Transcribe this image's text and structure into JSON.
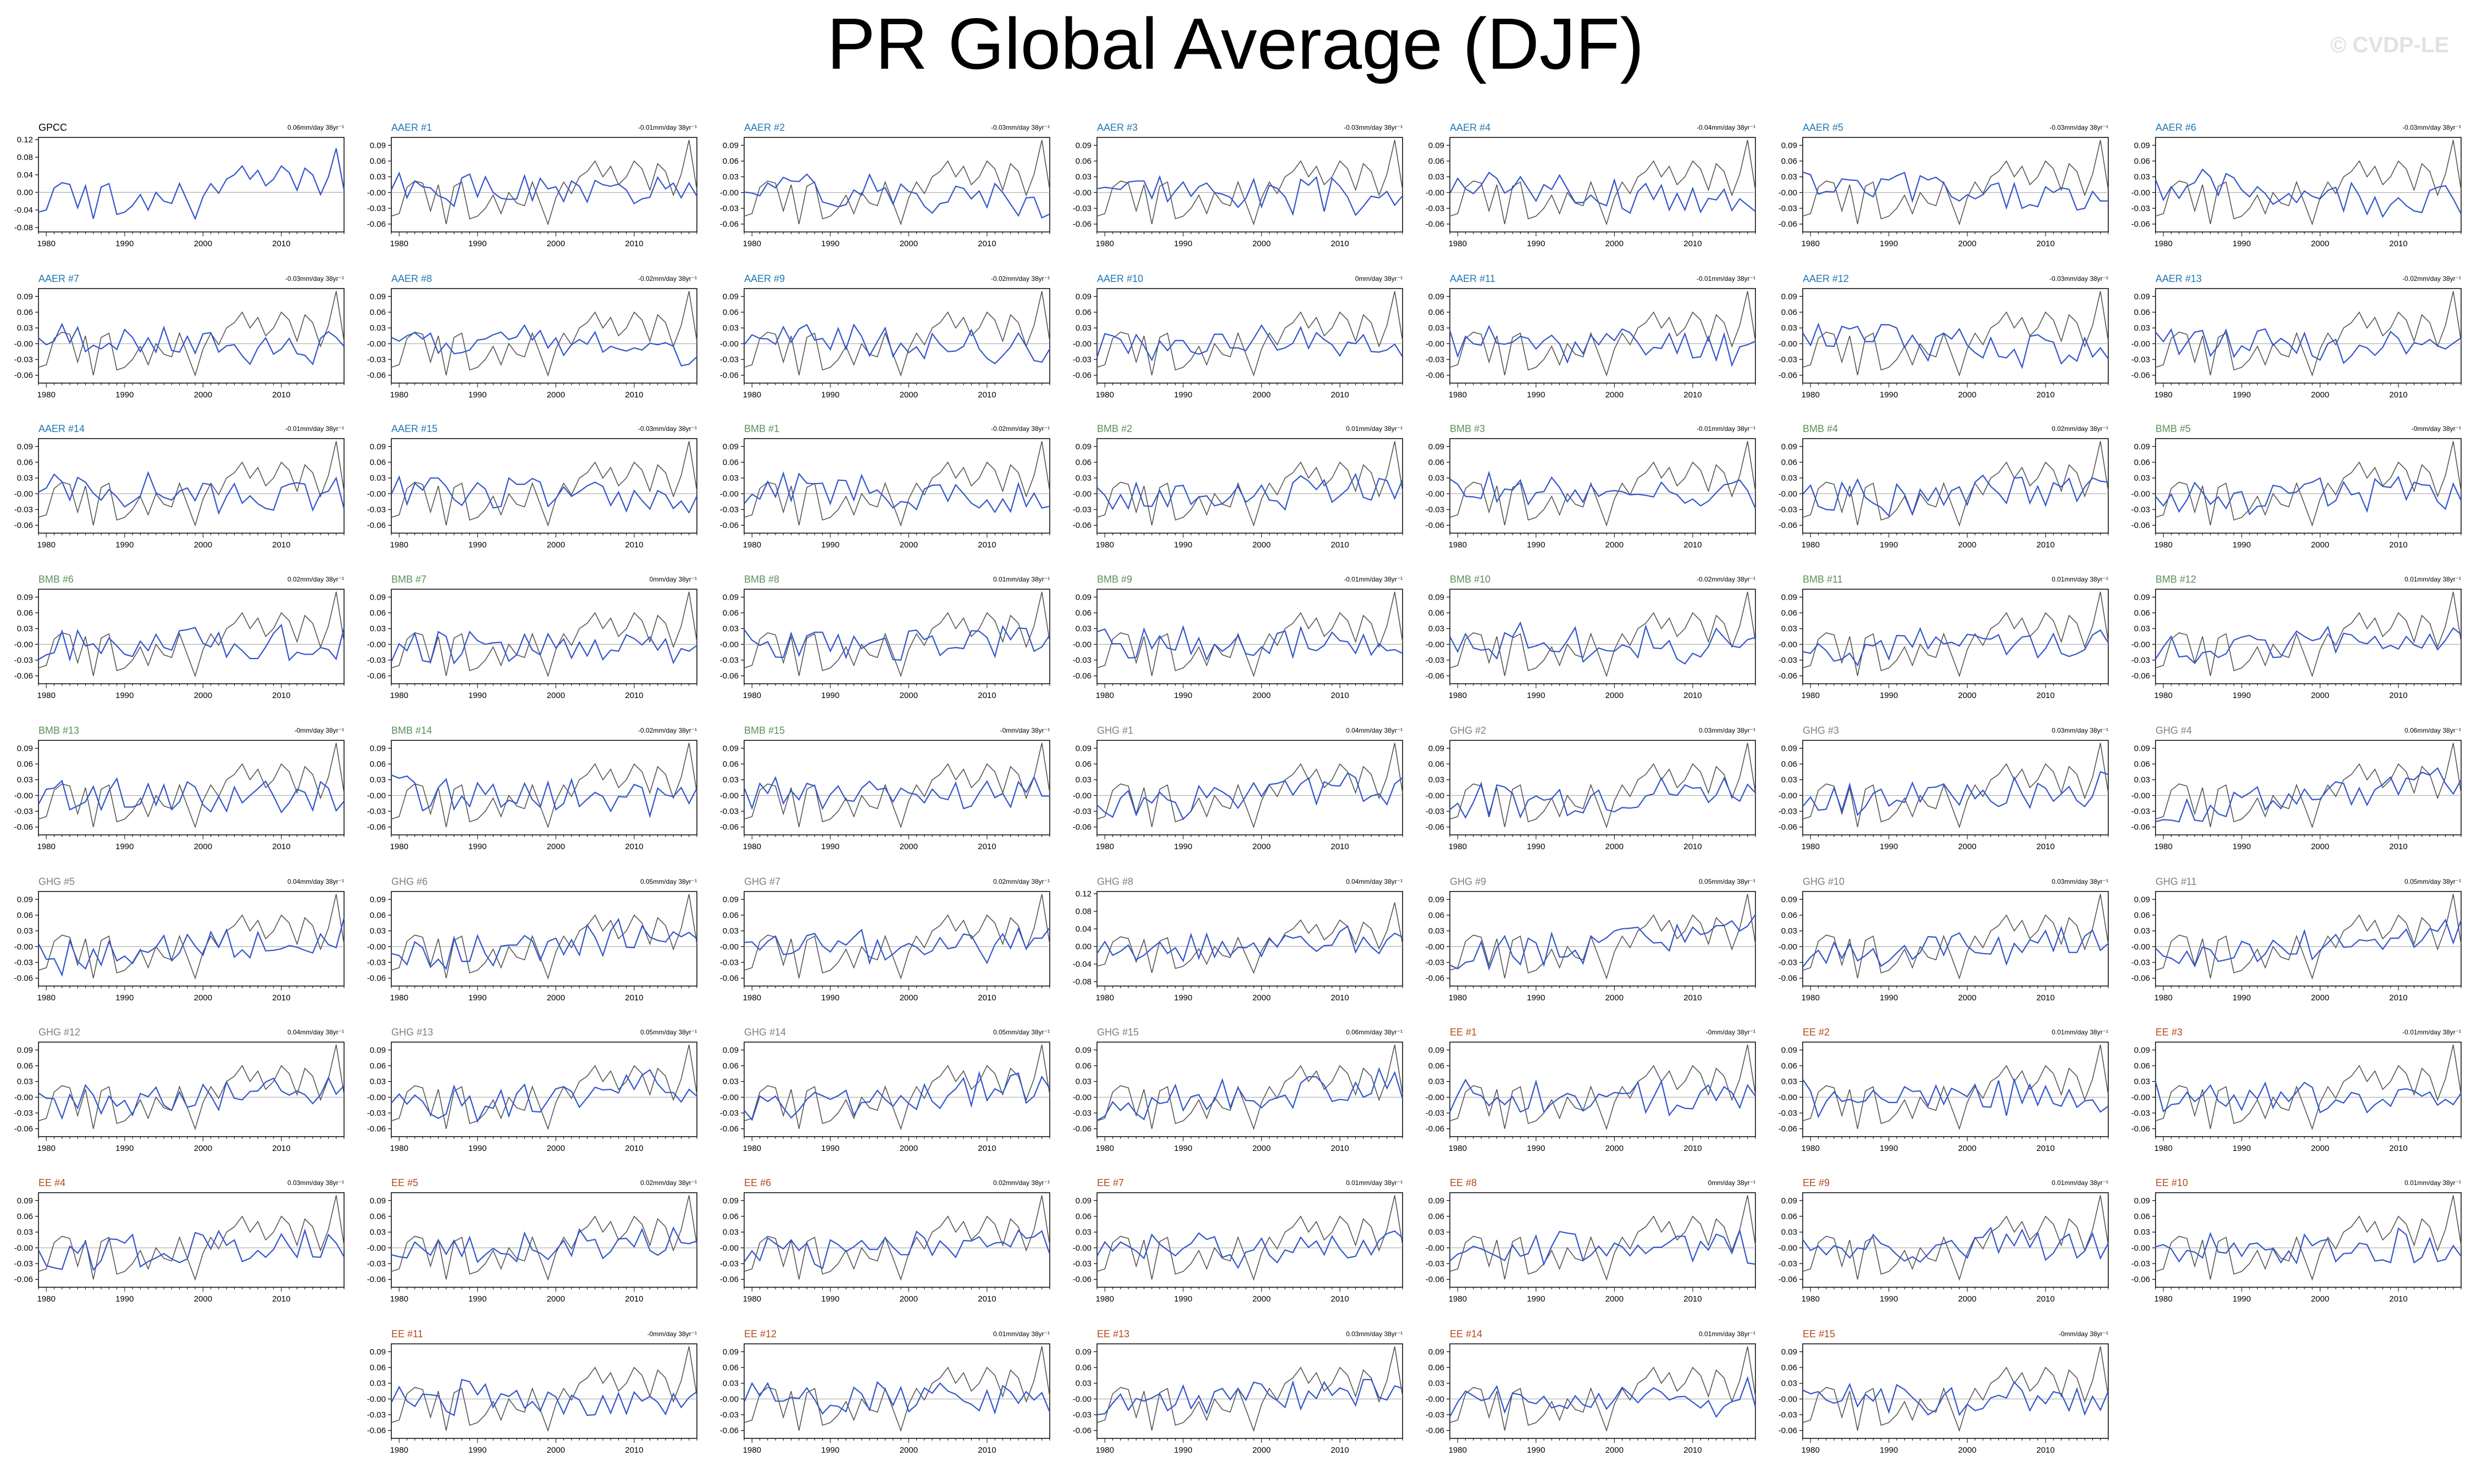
{
  "title": "PR Global Average (DJF)",
  "watermark": "© CVDP-LE",
  "colors": {
    "ensemble": "#3355cc",
    "obs": "#555555",
    "AAER": "#1f77b4",
    "BMB": "#5b8f5b",
    "GHG": "#7f7f7f",
    "EE": "#b04a1c",
    "GPCC": "#000000"
  },
  "chart_data": {
    "type": "line",
    "xlim": [
      1979,
      2018
    ],
    "x_ticks": [
      "1980",
      "1990",
      "2000",
      "2010"
    ],
    "y_ticks_default": [
      "0.09",
      "0.06",
      "0.03",
      "-0.00",
      "-0.03",
      "-0.06"
    ],
    "y_ticks_wide": [
      "0.12",
      "0.08",
      "0.04",
      "0.00",
      "-0.04",
      "-0.08"
    ],
    "ylim_default": [
      -0.075,
      0.105
    ],
    "ylim_wide": [
      -0.09,
      0.125
    ],
    "years": [
      1979,
      1980,
      1981,
      1982,
      1983,
      1984,
      1985,
      1986,
      1987,
      1988,
      1989,
      1990,
      1991,
      1992,
      1993,
      1994,
      1995,
      1996,
      1997,
      1998,
      1999,
      2000,
      2001,
      2002,
      2003,
      2004,
      2005,
      2006,
      2007,
      2008,
      2009,
      2010,
      2011,
      2012,
      2013,
      2014,
      2015,
      2016,
      2017,
      2018
    ],
    "observed_gpcc": [
      -0.045,
      -0.04,
      0.01,
      0.022,
      0.018,
      -0.035,
      0.015,
      -0.06,
      0.012,
      0.02,
      -0.05,
      -0.045,
      -0.03,
      -0.005,
      -0.04,
      0.0,
      -0.02,
      -0.025,
      0.02,
      -0.02,
      -0.06,
      -0.01,
      0.02,
      -0.002,
      0.03,
      0.04,
      0.06,
      0.03,
      0.05,
      0.015,
      0.03,
      0.06,
      0.045,
      0.005,
      0.055,
      0.04,
      -0.005,
      0.035,
      0.1,
      0.005
    ],
    "panels": [
      {
        "name": "GPCC",
        "group": "GPCC",
        "trend": "0.06mm/day 38yr⁻¹",
        "observed": true
      },
      {
        "name": "AAER #1",
        "group": "AAER",
        "trend": "-0.01mm/day 38yr⁻¹",
        "seed": 1
      },
      {
        "name": "AAER #2",
        "group": "AAER",
        "trend": "-0.03mm/day 38yr⁻¹",
        "seed": 2
      },
      {
        "name": "AAER #3",
        "group": "AAER",
        "trend": "-0.03mm/day 38yr⁻¹",
        "seed": 3
      },
      {
        "name": "AAER #4",
        "group": "AAER",
        "trend": "-0.04mm/day 38yr⁻¹",
        "seed": 4
      },
      {
        "name": "AAER #5",
        "group": "AAER",
        "trend": "-0.03mm/day 38yr⁻¹",
        "seed": 5
      },
      {
        "name": "AAER #6",
        "group": "AAER",
        "trend": "-0.03mm/day 38yr⁻¹",
        "seed": 6
      },
      {
        "name": "AAER #7",
        "group": "AAER",
        "trend": "-0.03mm/day 38yr⁻¹",
        "seed": 7
      },
      {
        "name": "AAER #8",
        "group": "AAER",
        "trend": "-0.02mm/day 38yr⁻¹",
        "seed": 8
      },
      {
        "name": "AAER #9",
        "group": "AAER",
        "trend": "-0.02mm/day 38yr⁻¹",
        "seed": 9
      },
      {
        "name": "AAER #10",
        "group": "AAER",
        "trend": "0mm/day 38yr⁻¹",
        "seed": 10
      },
      {
        "name": "AAER #11",
        "group": "AAER",
        "trend": "-0.01mm/day 38yr⁻¹",
        "seed": 11
      },
      {
        "name": "AAER #12",
        "group": "AAER",
        "trend": "-0.03mm/day 38yr⁻¹",
        "seed": 12
      },
      {
        "name": "AAER #13",
        "group": "AAER",
        "trend": "-0.02mm/day 38yr⁻¹",
        "seed": 13
      },
      {
        "name": "AAER #14",
        "group": "AAER",
        "trend": "-0.01mm/day 38yr⁻¹",
        "seed": 14
      },
      {
        "name": "AAER #15",
        "group": "AAER",
        "trend": "-0.03mm/day 38yr⁻¹",
        "seed": 15
      },
      {
        "name": "BMB #1",
        "group": "BMB",
        "trend": "-0.02mm/day 38yr⁻¹",
        "seed": 16
      },
      {
        "name": "BMB #2",
        "group": "BMB",
        "trend": "0.01mm/day 38yr⁻¹",
        "seed": 17
      },
      {
        "name": "BMB #3",
        "group": "BMB",
        "trend": "-0.01mm/day 38yr⁻¹",
        "seed": 18
      },
      {
        "name": "BMB #4",
        "group": "BMB",
        "trend": "0.02mm/day 38yr⁻¹",
        "seed": 19
      },
      {
        "name": "BMB #5",
        "group": "BMB",
        "trend": "-0mm/day 38yr⁻¹",
        "seed": 20
      },
      {
        "name": "BMB #6",
        "group": "BMB",
        "trend": "0.02mm/day 38yr⁻¹",
        "seed": 21
      },
      {
        "name": "BMB #7",
        "group": "BMB",
        "trend": "0mm/day 38yr⁻¹",
        "seed": 22
      },
      {
        "name": "BMB #8",
        "group": "BMB",
        "trend": "0.01mm/day 38yr⁻¹",
        "seed": 23
      },
      {
        "name": "BMB #9",
        "group": "BMB",
        "trend": "-0.01mm/day 38yr⁻¹",
        "seed": 24
      },
      {
        "name": "BMB #10",
        "group": "BMB",
        "trend": "-0.02mm/day 38yr⁻¹",
        "seed": 25
      },
      {
        "name": "BMB #11",
        "group": "BMB",
        "trend": "0.01mm/day 38yr⁻¹",
        "seed": 26
      },
      {
        "name": "BMB #12",
        "group": "BMB",
        "trend": "0.01mm/day 38yr⁻¹",
        "seed": 27
      },
      {
        "name": "BMB #13",
        "group": "BMB",
        "trend": "-0mm/day 38yr⁻¹",
        "seed": 28
      },
      {
        "name": "BMB #14",
        "group": "BMB",
        "trend": "-0.02mm/day 38yr⁻¹",
        "seed": 29
      },
      {
        "name": "BMB #15",
        "group": "BMB",
        "trend": "-0mm/day 38yr⁻¹",
        "seed": 30
      },
      {
        "name": "GHG #1",
        "group": "GHG",
        "trend": "0.04mm/day 38yr⁻¹",
        "seed": 31
      },
      {
        "name": "GHG #2",
        "group": "GHG",
        "trend": "0.03mm/day 38yr⁻¹",
        "seed": 32
      },
      {
        "name": "GHG #3",
        "group": "GHG",
        "trend": "0.03mm/day 38yr⁻¹",
        "seed": 33
      },
      {
        "name": "GHG #4",
        "group": "GHG",
        "trend": "0.06mm/day 38yr⁻¹",
        "seed": 34
      },
      {
        "name": "GHG #5",
        "group": "GHG",
        "trend": "0.04mm/day 38yr⁻¹",
        "seed": 35
      },
      {
        "name": "GHG #6",
        "group": "GHG",
        "trend": "0.05mm/day 38yr⁻¹",
        "seed": 36
      },
      {
        "name": "GHG #7",
        "group": "GHG",
        "trend": "0.02mm/day 38yr⁻¹",
        "seed": 37
      },
      {
        "name": "GHG #8",
        "group": "GHG",
        "trend": "0.04mm/day 38yr⁻¹",
        "seed": 38,
        "wide": true
      },
      {
        "name": "GHG #9",
        "group": "GHG",
        "trend": "0.05mm/day 38yr⁻¹",
        "seed": 39
      },
      {
        "name": "GHG #10",
        "group": "GHG",
        "trend": "0.03mm/day 38yr⁻¹",
        "seed": 40
      },
      {
        "name": "GHG #11",
        "group": "GHG",
        "trend": "0.05mm/day 38yr⁻¹",
        "seed": 41
      },
      {
        "name": "GHG #12",
        "group": "GHG",
        "trend": "0.04mm/day 38yr⁻¹",
        "seed": 42
      },
      {
        "name": "GHG #13",
        "group": "GHG",
        "trend": "0.05mm/day 38yr⁻¹",
        "seed": 43
      },
      {
        "name": "GHG #14",
        "group": "GHG",
        "trend": "0.05mm/day 38yr⁻¹",
        "seed": 44
      },
      {
        "name": "GHG #15",
        "group": "GHG",
        "trend": "0.06mm/day 38yr⁻¹",
        "seed": 45
      },
      {
        "name": "EE #1",
        "group": "EE",
        "trend": "-0mm/day 38yr⁻¹",
        "seed": 46
      },
      {
        "name": "EE #2",
        "group": "EE",
        "trend": "0.01mm/day 38yr⁻¹",
        "seed": 47
      },
      {
        "name": "EE #3",
        "group": "EE",
        "trend": "-0.01mm/day 38yr⁻¹",
        "seed": 48
      },
      {
        "name": "EE #4",
        "group": "EE",
        "trend": "0.03mm/day 38yr⁻¹",
        "seed": 49
      },
      {
        "name": "EE #5",
        "group": "EE",
        "trend": "0.02mm/day 38yr⁻¹",
        "seed": 50
      },
      {
        "name": "EE #6",
        "group": "EE",
        "trend": "0.02mm/day 38yr⁻¹",
        "seed": 51
      },
      {
        "name": "EE #7",
        "group": "EE",
        "trend": "0.01mm/day 38yr⁻¹",
        "seed": 52
      },
      {
        "name": "EE #8",
        "group": "EE",
        "trend": "0mm/day 38yr⁻¹",
        "seed": 53
      },
      {
        "name": "EE #9",
        "group": "EE",
        "trend": "0.01mm/day 38yr⁻¹",
        "seed": 54
      },
      {
        "name": "EE #10",
        "group": "EE",
        "trend": "0.01mm/day 38yr⁻¹",
        "seed": 55
      },
      {
        "name": "EE #11",
        "group": "EE",
        "trend": "-0mm/day 38yr⁻¹",
        "seed": 56
      },
      {
        "name": "EE #12",
        "group": "EE",
        "trend": "0.01mm/day 38yr⁻¹",
        "seed": 57
      },
      {
        "name": "EE #13",
        "group": "EE",
        "trend": "0.03mm/day 38yr⁻¹",
        "seed": 58
      },
      {
        "name": "EE #14",
        "group": "EE",
        "trend": "0.01mm/day 38yr⁻¹",
        "seed": 59
      },
      {
        "name": "EE #15",
        "group": "EE",
        "trend": "-0mm/day 38yr⁻¹",
        "seed": 60
      }
    ]
  }
}
